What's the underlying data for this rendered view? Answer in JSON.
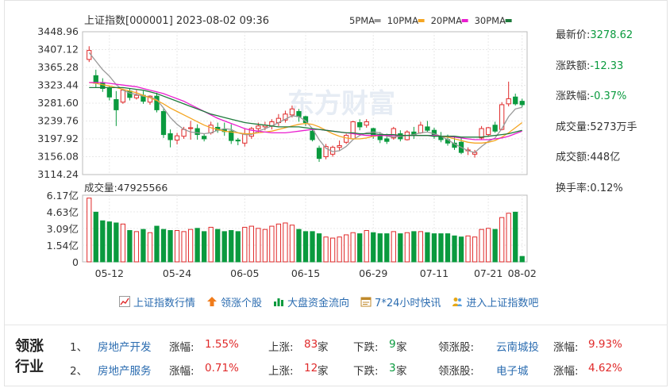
{
  "chart": {
    "header": "上证指数[000001] 2023-08-02 09:36",
    "ma_legend": [
      {
        "label": "5PMA",
        "color": "#999999"
      },
      {
        "label": "10PMA",
        "color": "#f5a623"
      },
      {
        "label": "20PMA",
        "color": "#e91ecf"
      },
      {
        "label": "30PMA",
        "color": "#1e7a3c"
      }
    ],
    "price_ticks": [
      "3448.96",
      "3407.12",
      "3365.28",
      "3323.44",
      "3281.60",
      "3239.76",
      "3197.92",
      "3156.08",
      "3114.24"
    ],
    "volume_ticks": [
      "6.17亿",
      "4.63亿",
      "3.09亿",
      "1.54亿",
      "0"
    ],
    "volume_label": "成交量:47925566",
    "date_ticks": [
      "05-12",
      "05-24",
      "06-05",
      "06-15",
      "06-29",
      "07-11",
      "07-21",
      "08-02"
    ],
    "watermark": "东方财富",
    "colors": {
      "up": "#e02a2a",
      "down": "#0a9a3e",
      "grid": "#e8e8e8"
    }
  },
  "chart_data": {
    "type": "candlestick",
    "title": "上证指数[000001] 2023-08-02 09:36",
    "price_range": [
      3114.24,
      3448.96
    ],
    "volume_range": [
      0,
      617000000
    ],
    "candles": [
      {
        "o": 3384,
        "h": 3415,
        "c": 3405,
        "l": 3378,
        "v": 5.9
      },
      {
        "o": 3346,
        "h": 3360,
        "c": 3328,
        "l": 3318,
        "v": 4.6
      },
      {
        "o": 3330,
        "h": 3340,
        "c": 3316,
        "l": 3308,
        "v": 3.8
      },
      {
        "o": 3316,
        "h": 3322,
        "c": 3296,
        "l": 3288,
        "v": 3.7
      },
      {
        "o": 3290,
        "h": 3310,
        "c": 3266,
        "l": 3228,
        "v": 3.6
      },
      {
        "o": 3284,
        "h": 3316,
        "c": 3312,
        "l": 3280,
        "v": 3.5
      },
      {
        "o": 3310,
        "h": 3316,
        "c": 3295,
        "l": 3288,
        "v": 2.9
      },
      {
        "o": 3294,
        "h": 3312,
        "c": 3300,
        "l": 3290,
        "v": 2.8
      },
      {
        "o": 3300,
        "h": 3310,
        "c": 3286,
        "l": 3280,
        "v": 3.0
      },
      {
        "o": 3284,
        "h": 3300,
        "c": 3298,
        "l": 3278,
        "v": 2.7
      },
      {
        "o": 3298,
        "h": 3306,
        "c": 3266,
        "l": 3260,
        "v": 3.3
      },
      {
        "o": 3262,
        "h": 3268,
        "c": 3208,
        "l": 3200,
        "v": 3.0
      },
      {
        "o": 3210,
        "h": 3220,
        "c": 3196,
        "l": 3178,
        "v": 2.9
      },
      {
        "o": 3195,
        "h": 3212,
        "c": 3205,
        "l": 3185,
        "v": 2.9
      },
      {
        "o": 3204,
        "h": 3226,
        "c": 3220,
        "l": 3198,
        "v": 2.8
      },
      {
        "o": 3222,
        "h": 3240,
        "c": 3224,
        "l": 3196,
        "v": 3.0
      },
      {
        "o": 3222,
        "h": 3232,
        "c": 3208,
        "l": 3196,
        "v": 3.1
      },
      {
        "o": 3204,
        "h": 3210,
        "c": 3198,
        "l": 3192,
        "v": 2.8
      },
      {
        "o": 3212,
        "h": 3238,
        "c": 3230,
        "l": 3208,
        "v": 3.2
      },
      {
        "o": 3225,
        "h": 3236,
        "c": 3218,
        "l": 3212,
        "v": 3.0
      },
      {
        "o": 3220,
        "h": 3236,
        "c": 3215,
        "l": 3205,
        "v": 2.8
      },
      {
        "o": 3216,
        "h": 3232,
        "c": 3194,
        "l": 3186,
        "v": 2.9
      },
      {
        "o": 3195,
        "h": 3200,
        "c": 3193,
        "l": 3183,
        "v": 2.8
      },
      {
        "o": 3188,
        "h": 3222,
        "c": 3210,
        "l": 3180,
        "v": 3.2
      },
      {
        "o": 3204,
        "h": 3226,
        "c": 3222,
        "l": 3198,
        "v": 3.3
      },
      {
        "o": 3222,
        "h": 3236,
        "c": 3228,
        "l": 3212,
        "v": 3.1
      },
      {
        "o": 3226,
        "h": 3238,
        "c": 3230,
        "l": 3218,
        "v": 3.0
      },
      {
        "o": 3228,
        "h": 3244,
        "c": 3238,
        "l": 3220,
        "v": 3.3
      },
      {
        "o": 3236,
        "h": 3256,
        "c": 3246,
        "l": 3228,
        "v": 3.5
      },
      {
        "o": 3242,
        "h": 3264,
        "c": 3256,
        "l": 3236,
        "v": 3.6
      },
      {
        "o": 3254,
        "h": 3276,
        "c": 3268,
        "l": 3248,
        "v": 3.4
      },
      {
        "o": 3262,
        "h": 3268,
        "c": 3250,
        "l": 3238,
        "v": 3.0
      },
      {
        "o": 3250,
        "h": 3252,
        "c": 3236,
        "l": 3228,
        "v": 2.8
      },
      {
        "o": 3216,
        "h": 3220,
        "c": 3196,
        "l": 3192,
        "v": 2.8
      },
      {
        "o": 3176,
        "h": 3182,
        "c": 3152,
        "l": 3144,
        "v": 2.6
      },
      {
        "o": 3156,
        "h": 3186,
        "c": 3180,
        "l": 3150,
        "v": 2.3
      },
      {
        "o": 3162,
        "h": 3182,
        "c": 3178,
        "l": 3156,
        "v": 2.2
      },
      {
        "o": 3178,
        "h": 3194,
        "c": 3182,
        "l": 3170,
        "v": 2.3
      },
      {
        "o": 3190,
        "h": 3210,
        "c": 3206,
        "l": 3186,
        "v": 2.5
      },
      {
        "o": 3198,
        "h": 3240,
        "c": 3238,
        "l": 3196,
        "v": 2.7
      },
      {
        "o": 3236,
        "h": 3244,
        "c": 3226,
        "l": 3218,
        "v": 2.6
      },
      {
        "o": 3230,
        "h": 3244,
        "c": 3238,
        "l": 3224,
        "v": 2.9
      },
      {
        "o": 3222,
        "h": 3224,
        "c": 3204,
        "l": 3198,
        "v": 2.7
      },
      {
        "o": 3204,
        "h": 3214,
        "c": 3196,
        "l": 3188,
        "v": 2.6
      },
      {
        "o": 3198,
        "h": 3210,
        "c": 3192,
        "l": 3186,
        "v": 2.6
      },
      {
        "o": 3200,
        "h": 3226,
        "c": 3222,
        "l": 3196,
        "v": 2.8
      },
      {
        "o": 3210,
        "h": 3218,
        "c": 3198,
        "l": 3192,
        "v": 2.6
      },
      {
        "o": 3196,
        "h": 3218,
        "c": 3214,
        "l": 3194,
        "v": 2.7
      },
      {
        "o": 3214,
        "h": 3226,
        "c": 3206,
        "l": 3198,
        "v": 2.8
      },
      {
        "o": 3212,
        "h": 3238,
        "c": 3230,
        "l": 3210,
        "v": 2.8
      },
      {
        "o": 3226,
        "h": 3240,
        "c": 3218,
        "l": 3214,
        "v": 2.7
      },
      {
        "o": 3218,
        "h": 3224,
        "c": 3204,
        "l": 3198,
        "v": 2.6
      },
      {
        "o": 3204,
        "h": 3214,
        "c": 3196,
        "l": 3190,
        "v": 2.6
      },
      {
        "o": 3196,
        "h": 3208,
        "c": 3188,
        "l": 3182,
        "v": 2.6
      },
      {
        "o": 3188,
        "h": 3202,
        "c": 3178,
        "l": 3172,
        "v": 2.4
      },
      {
        "o": 3190,
        "h": 3200,
        "c": 3166,
        "l": 3162,
        "v": 2.3
      },
      {
        "o": 3170,
        "h": 3178,
        "c": 3172,
        "l": 3160,
        "v": 2.4
      },
      {
        "o": 3162,
        "h": 3172,
        "c": 3166,
        "l": 3154,
        "v": 2.3
      },
      {
        "o": 3200,
        "h": 3228,
        "c": 3222,
        "l": 3196,
        "v": 3.0
      },
      {
        "o": 3208,
        "h": 3226,
        "c": 3224,
        "l": 3204,
        "v": 3.1
      },
      {
        "o": 3230,
        "h": 3238,
        "c": 3216,
        "l": 3212,
        "v": 3.0
      },
      {
        "o": 3220,
        "h": 3284,
        "c": 3278,
        "l": 3218,
        "v": 4.1
      },
      {
        "o": 3280,
        "h": 3332,
        "c": 3292,
        "l": 3274,
        "v": 4.5
      },
      {
        "o": 3296,
        "h": 3304,
        "c": 3280,
        "l": 3276,
        "v": 4.6
      },
      {
        "o": 3286,
        "h": 3292,
        "c": 3278,
        "l": 3272,
        "v": 0.5
      }
    ],
    "ma_series": [
      {
        "name": "5PMA",
        "values": [
          3400,
          3380,
          3360,
          3345,
          3325,
          3312,
          3305,
          3302,
          3298,
          3296,
          3290,
          3270,
          3248,
          3232,
          3220,
          3214,
          3212,
          3210,
          3212,
          3218,
          3222,
          3220,
          3212,
          3208,
          3208,
          3216,
          3222,
          3228,
          3236,
          3244,
          3252,
          3250,
          3240,
          3222,
          3196,
          3176,
          3168,
          3170,
          3180,
          3196,
          3206,
          3212,
          3214,
          3212,
          3204,
          3202,
          3204,
          3206,
          3208,
          3212,
          3214,
          3210,
          3204,
          3196,
          3186,
          3178,
          3170,
          3166,
          3180,
          3192,
          3200,
          3222,
          3250,
          3268,
          3272
        ]
      },
      {
        "name": "10PMA",
        "values": [
          3330,
          3328,
          3325,
          3322,
          3318,
          3314,
          3310,
          3306,
          3300,
          3294,
          3288,
          3280,
          3270,
          3262,
          3254,
          3246,
          3238,
          3230,
          3224,
          3220,
          3216,
          3214,
          3212,
          3210,
          3210,
          3212,
          3214,
          3216,
          3220,
          3224,
          3228,
          3232,
          3234,
          3232,
          3226,
          3218,
          3210,
          3204,
          3200,
          3198,
          3198,
          3200,
          3204,
          3206,
          3206,
          3206,
          3206,
          3206,
          3206,
          3206,
          3206,
          3206,
          3204,
          3202,
          3198,
          3194,
          3190,
          3188,
          3188,
          3190,
          3194,
          3202,
          3212,
          3224,
          3236
        ]
      },
      {
        "name": "20PMA",
        "values": [
          3330,
          3330,
          3330,
          3328,
          3326,
          3324,
          3322,
          3320,
          3316,
          3312,
          3308,
          3304,
          3298,
          3292,
          3286,
          3278,
          3270,
          3262,
          3254,
          3246,
          3240,
          3234,
          3228,
          3222,
          3218,
          3216,
          3214,
          3212,
          3212,
          3212,
          3214,
          3216,
          3218,
          3220,
          3220,
          3218,
          3216,
          3214,
          3212,
          3210,
          3208,
          3206,
          3206,
          3206,
          3206,
          3206,
          3206,
          3206,
          3206,
          3206,
          3206,
          3206,
          3204,
          3204,
          3202,
          3200,
          3198,
          3196,
          3196,
          3196,
          3198,
          3200,
          3204,
          3210,
          3216
        ]
      },
      {
        "name": "30PMA",
        "values": [
          3318,
          3318,
          3318,
          3318,
          3318,
          3318,
          3316,
          3314,
          3312,
          3308,
          3304,
          3298,
          3292,
          3286,
          3280,
          3274,
          3268,
          3262,
          3256,
          3252,
          3248,
          3244,
          3240,
          3236,
          3234,
          3232,
          3230,
          3228,
          3226,
          3226,
          3226,
          3226,
          3224,
          3222,
          3220,
          3218,
          3216,
          3214,
          3212,
          3212,
          3210,
          3210,
          3210,
          3208,
          3208,
          3208,
          3206,
          3206,
          3206,
          3206,
          3206,
          3204,
          3204,
          3204,
          3204,
          3202,
          3202,
          3202,
          3202,
          3204,
          3206,
          3208,
          3210,
          3214,
          3218
        ]
      }
    ]
  },
  "quote": [
    {
      "label": "最新价:",
      "value": "3278.62",
      "tone": "down"
    },
    {
      "label": "涨跌额:",
      "value": "-12.33",
      "tone": "down"
    },
    {
      "label": "涨跌幅:",
      "value": "-0.37%",
      "tone": "down"
    },
    {
      "label": "成交量:",
      "value": "5273万手",
      "tone": "plain"
    },
    {
      "label": "成交额:",
      "value": "448亿",
      "tone": "plain"
    },
    {
      "label": "换手率:",
      "value": "0.12%",
      "tone": "plain"
    }
  ],
  "links": [
    {
      "icon": "line-chart-icon",
      "label": "上证指数行情"
    },
    {
      "icon": "up-arrow-icon",
      "label": "领涨个股"
    },
    {
      "icon": "bar-chart-icon",
      "label": "大盘资金流向"
    },
    {
      "icon": "calendar-icon",
      "label": "7*24小时快讯"
    },
    {
      "icon": "users-icon",
      "label": "进入上证指数吧"
    }
  ],
  "sector": {
    "title_line1": "领涨",
    "title_line2": "行业",
    "rows": [
      {
        "idx": "1、",
        "name": "房地产开发",
        "chg_label": "涨幅:",
        "chg": "1.55%",
        "up_label": "上涨:",
        "up": "83",
        "up_unit": "家",
        "down_label": "下跌:",
        "down": "9",
        "down_unit": "家",
        "lead_label": "领涨股:",
        "lead": "云南城投",
        "lead_chg_label": "涨幅:",
        "lead_chg": "9.93%"
      },
      {
        "idx": "2、",
        "name": "房地产服务",
        "chg_label": "涨幅:",
        "chg": "0.71%",
        "up_label": "上涨:",
        "up": "12",
        "up_unit": "家",
        "down_label": "下跌:",
        "down": "3",
        "down_unit": "家",
        "lead_label": "领涨股:",
        "lead": "电子城",
        "lead_chg_label": "涨幅:",
        "lead_chg": "4.62%"
      }
    ]
  }
}
